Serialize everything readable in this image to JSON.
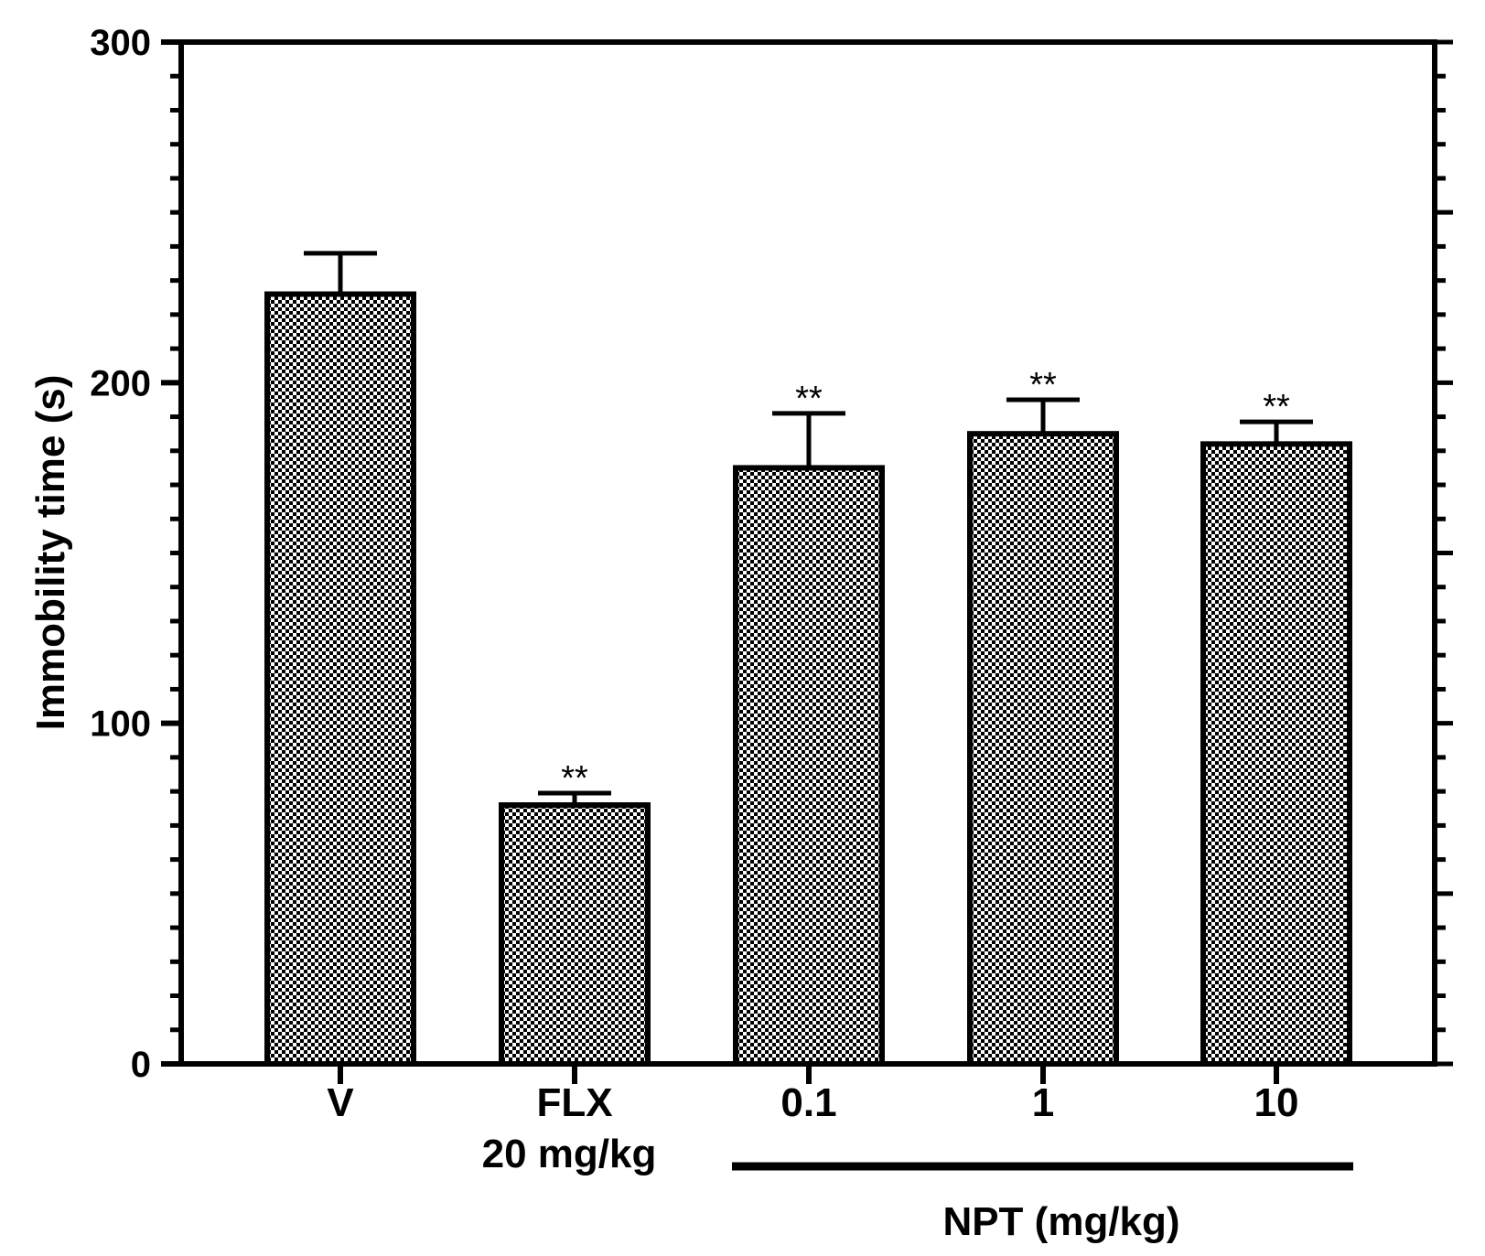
{
  "chart_data": {
    "type": "bar",
    "title": "",
    "xlabel": "",
    "ylabel": "Immobility time (s)",
    "ylim": [
      0,
      300
    ],
    "yticks": [
      0,
      100,
      200,
      300
    ],
    "categories": [
      "V",
      "FLX",
      "0.1",
      "1",
      "10"
    ],
    "category_sublabels": [
      "",
      "20 mg/kg",
      "",
      "",
      ""
    ],
    "group_label": "NPT (mg/kg)",
    "group_members": [
      "0.1",
      "1",
      "10"
    ],
    "values": [
      226,
      76,
      175,
      185,
      182
    ],
    "errors": [
      12,
      3.5,
      16,
      10,
      6.5
    ],
    "significance": [
      "",
      "**",
      "**",
      "**",
      "**"
    ],
    "fill_pattern": "checkerboard",
    "fill_colors": [
      "#000000",
      "#ffffff"
    ],
    "frame": "boxed with right-side minor ticks"
  }
}
